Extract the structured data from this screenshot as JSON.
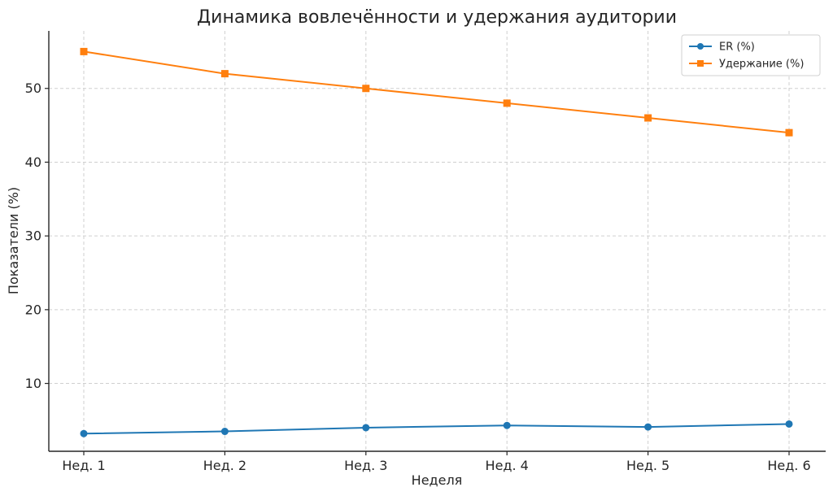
{
  "chart_data": {
    "type": "line",
    "title": "Динамика вовлечённости и удержания аудитории",
    "xlabel": "Неделя",
    "ylabel": "Показатели (%)",
    "categories": [
      "Нед. 1",
      "Нед. 2",
      "Нед. 3",
      "Нед. 4",
      "Нед. 5",
      "Нед. 6"
    ],
    "ylim": [
      0.8,
      57.8
    ],
    "yticks": [
      10,
      20,
      30,
      40,
      50
    ],
    "grid": true,
    "legend_position": "top-right",
    "series": [
      {
        "name": "ER (%)",
        "values": [
          3.2,
          3.5,
          4.0,
          4.3,
          4.1,
          4.5
        ],
        "color": "#1f77b4",
        "marker": "circle"
      },
      {
        "name": "Удержание (%)",
        "values": [
          55,
          52,
          50,
          48,
          46,
          44
        ],
        "color": "#ff7f0e",
        "marker": "square"
      }
    ]
  }
}
